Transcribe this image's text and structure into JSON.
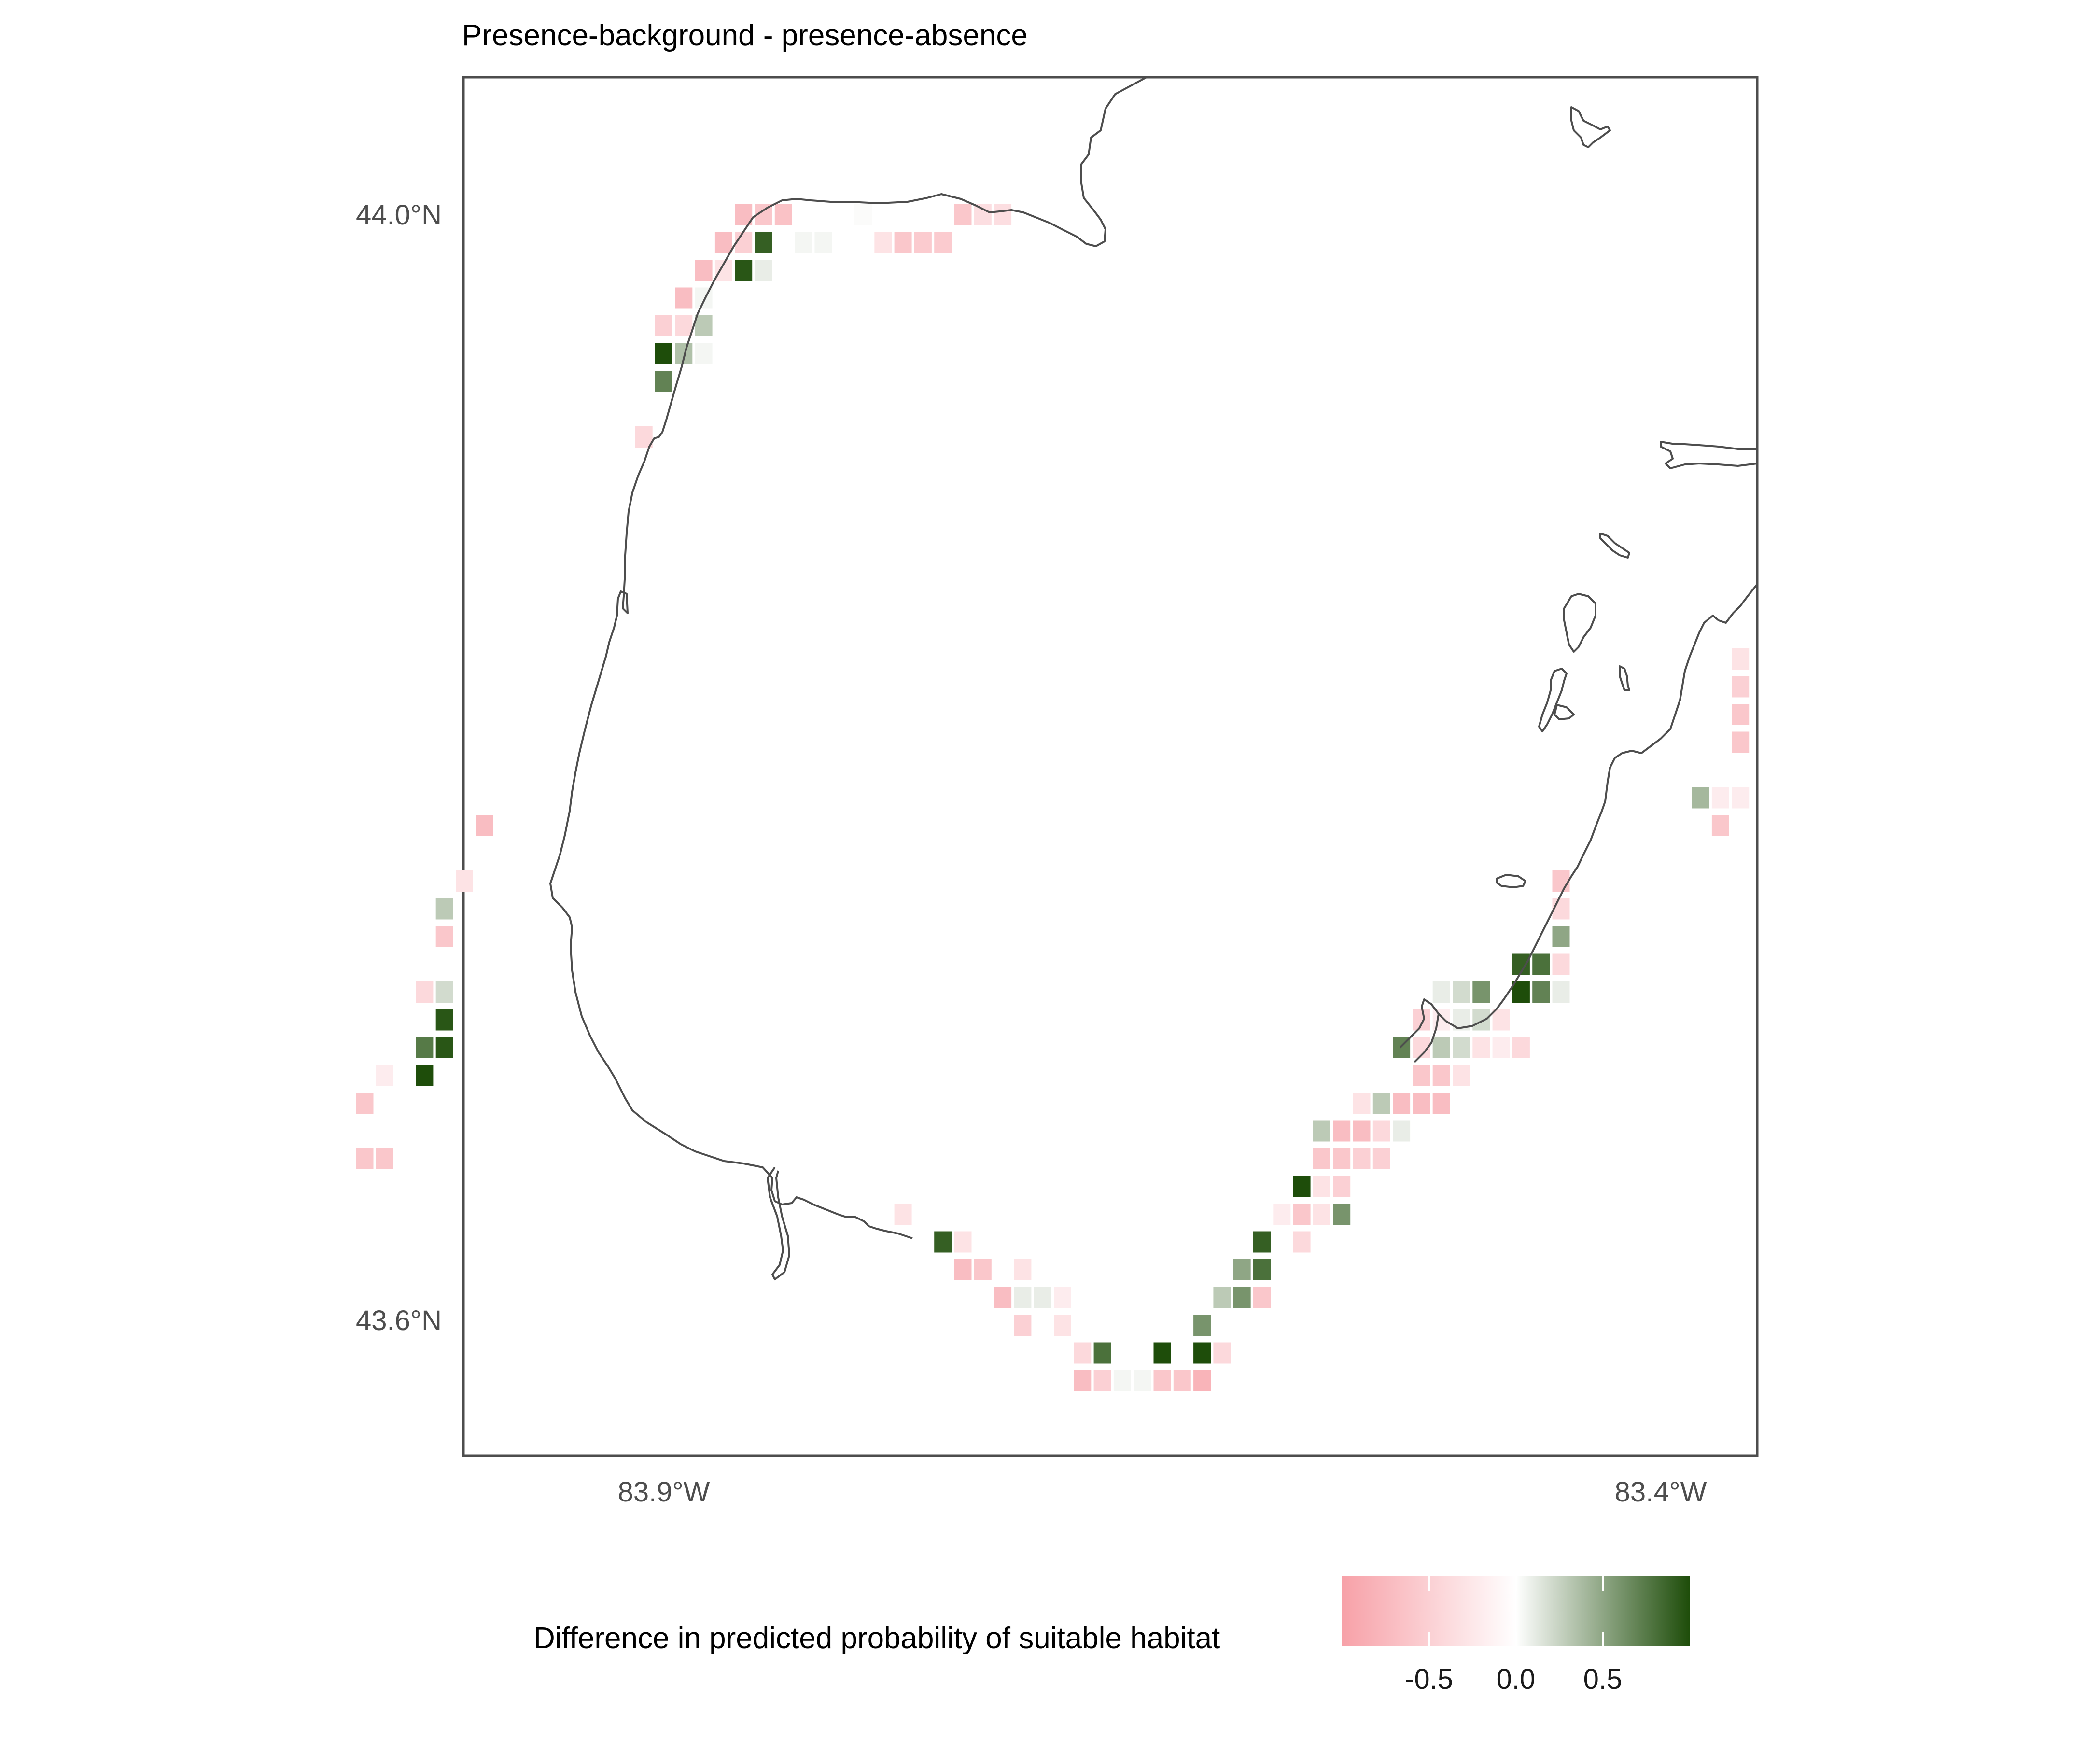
{
  "title": "Presence-background - presence-absence",
  "axes": {
    "lat_ticks": [
      "44.0°N",
      "43.6°N"
    ],
    "lon_ticks": [
      "83.9°W",
      "83.4°W"
    ]
  },
  "legend": {
    "title": "Difference in predicted probability of suitable habitat",
    "ticks": [
      "-0.5",
      "0.0",
      "0.5"
    ],
    "tick_values": [
      -0.5,
      0.0,
      0.5
    ],
    "range": [
      -1.0,
      1.0
    ],
    "colors": {
      "low": "#f7a1a8",
      "mid": "#ffffff",
      "high": "#1e4d0a"
    }
  },
  "map_data": {
    "type": "raster",
    "value_meaning": "difference",
    "cells_note": "",
    "cells": [
      {
        "lon": -83.86,
        "lat": 44.0,
        "v": -0.7
      },
      {
        "lon": -83.85,
        "lat": 44.0,
        "v": -0.6
      },
      {
        "lon": -83.84,
        "lat": 44.0,
        "v": -0.65
      },
      {
        "lon": -83.87,
        "lat": 43.99,
        "v": -0.7
      },
      {
        "lon": -83.86,
        "lat": 43.99,
        "v": -0.5
      },
      {
        "lon": -83.85,
        "lat": 43.99,
        "v": 0.9
      },
      {
        "lon": -83.84,
        "lat": 43.99,
        "v": 0.0
      },
      {
        "lon": -83.83,
        "lat": 43.99,
        "v": 0.05
      },
      {
        "lon": -83.82,
        "lat": 43.99,
        "v": 0.05
      },
      {
        "lon": -83.88,
        "lat": 43.98,
        "v": -0.7
      },
      {
        "lon": -83.87,
        "lat": 43.98,
        "v": -0.3
      },
      {
        "lon": -83.86,
        "lat": 43.98,
        "v": 0.95
      },
      {
        "lon": -83.85,
        "lat": 43.98,
        "v": 0.1
      },
      {
        "lon": -83.89,
        "lat": 43.97,
        "v": -0.7
      },
      {
        "lon": -83.88,
        "lat": 43.97,
        "v": 0.05
      },
      {
        "lon": -83.9,
        "lat": 43.96,
        "v": -0.5
      },
      {
        "lon": -83.89,
        "lat": 43.96,
        "v": -0.4
      },
      {
        "lon": -83.88,
        "lat": 43.96,
        "v": 0.3
      },
      {
        "lon": -83.9,
        "lat": 43.95,
        "v": 1.0
      },
      {
        "lon": -83.89,
        "lat": 43.95,
        "v": 0.35
      },
      {
        "lon": -83.88,
        "lat": 43.95,
        "v": 0.05
      },
      {
        "lon": -83.9,
        "lat": 43.94,
        "v": 0.7
      },
      {
        "lon": -83.91,
        "lat": 43.92,
        "v": -0.4
      },
      {
        "lon": -83.81,
        "lat": 44.0,
        "v": 0.0
      },
      {
        "lon": -83.8,
        "lat": 44.0,
        "v": 0.02
      },
      {
        "lon": -83.79,
        "lat": 43.99,
        "v": -0.3
      },
      {
        "lon": -83.78,
        "lat": 43.99,
        "v": -0.6
      },
      {
        "lon": -83.77,
        "lat": 43.99,
        "v": -0.55
      },
      {
        "lon": -83.76,
        "lat": 43.99,
        "v": -0.55
      },
      {
        "lon": -83.75,
        "lat": 44.0,
        "v": -0.6
      },
      {
        "lon": -83.74,
        "lat": 44.0,
        "v": -0.35
      },
      {
        "lon": -83.73,
        "lat": 44.0,
        "v": -0.35
      },
      {
        "lon": -83.99,
        "lat": 43.78,
        "v": -0.7
      },
      {
        "lon": -84.0,
        "lat": 43.76,
        "v": -0.3
      },
      {
        "lon": -84.01,
        "lat": 43.75,
        "v": 0.3
      },
      {
        "lon": -84.01,
        "lat": 43.74,
        "v": -0.6
      },
      {
        "lon": -84.02,
        "lat": 43.72,
        "v": -0.4
      },
      {
        "lon": -84.01,
        "lat": 43.72,
        "v": 0.2
      },
      {
        "lon": -84.01,
        "lat": 43.71,
        "v": 0.95
      },
      {
        "lon": -84.02,
        "lat": 43.7,
        "v": 0.75
      },
      {
        "lon": -84.01,
        "lat": 43.7,
        "v": 0.95
      },
      {
        "lon": -84.02,
        "lat": 43.69,
        "v": 1.0
      },
      {
        "lon": -84.04,
        "lat": 43.69,
        "v": -0.2
      },
      {
        "lon": -84.05,
        "lat": 43.68,
        "v": -0.6
      },
      {
        "lon": -84.05,
        "lat": 43.66,
        "v": -0.6
      },
      {
        "lon": -84.04,
        "lat": 43.66,
        "v": -0.6
      },
      {
        "lon": -83.78,
        "lat": 43.64,
        "v": -0.3
      },
      {
        "lon": -83.76,
        "lat": 43.63,
        "v": 0.9
      },
      {
        "lon": -83.75,
        "lat": 43.63,
        "v": -0.3
      },
      {
        "lon": -83.75,
        "lat": 43.62,
        "v": -0.7
      },
      {
        "lon": -83.74,
        "lat": 43.62,
        "v": -0.6
      },
      {
        "lon": -83.72,
        "lat": 43.62,
        "v": -0.3
      },
      {
        "lon": -83.73,
        "lat": 43.61,
        "v": -0.7
      },
      {
        "lon": -83.72,
        "lat": 43.61,
        "v": 0.1
      },
      {
        "lon": -83.71,
        "lat": 43.61,
        "v": 0.1
      },
      {
        "lon": -83.7,
        "lat": 43.61,
        "v": -0.2
      },
      {
        "lon": -83.72,
        "lat": 43.6,
        "v": -0.5
      },
      {
        "lon": -83.7,
        "lat": 43.6,
        "v": -0.3
      },
      {
        "lon": -83.69,
        "lat": 43.59,
        "v": -0.4
      },
      {
        "lon": -83.68,
        "lat": 43.59,
        "v": 0.8
      },
      {
        "lon": -83.69,
        "lat": 43.58,
        "v": -0.7
      },
      {
        "lon": -83.68,
        "lat": 43.58,
        "v": -0.5
      },
      {
        "lon": -83.67,
        "lat": 43.58,
        "v": 0.05
      },
      {
        "lon": -83.66,
        "lat": 43.58,
        "v": 0.05
      },
      {
        "lon": -83.65,
        "lat": 43.58,
        "v": -0.6
      },
      {
        "lon": -83.64,
        "lat": 43.58,
        "v": -0.6
      },
      {
        "lon": -83.63,
        "lat": 43.58,
        "v": -0.8
      },
      {
        "lon": -83.65,
        "lat": 43.59,
        "v": 1.0
      },
      {
        "lon": -83.63,
        "lat": 43.59,
        "v": 1.0
      },
      {
        "lon": -83.62,
        "lat": 43.59,
        "v": -0.4
      },
      {
        "lon": -83.63,
        "lat": 43.6,
        "v": 0.6
      },
      {
        "lon": -83.62,
        "lat": 43.61,
        "v": 0.3
      },
      {
        "lon": -83.61,
        "lat": 43.61,
        "v": 0.6
      },
      {
        "lon": -83.6,
        "lat": 43.61,
        "v": -0.6
      },
      {
        "lon": -83.61,
        "lat": 43.62,
        "v": 0.5
      },
      {
        "lon": -83.6,
        "lat": 43.62,
        "v": 0.8
      },
      {
        "lon": -83.6,
        "lat": 43.63,
        "v": 0.9
      },
      {
        "lon": -83.58,
        "lat": 43.63,
        "v": -0.4
      },
      {
        "lon": -83.59,
        "lat": 43.64,
        "v": -0.2
      },
      {
        "lon": -83.58,
        "lat": 43.64,
        "v": -0.6
      },
      {
        "lon": -83.57,
        "lat": 43.64,
        "v": -0.3
      },
      {
        "lon": -83.56,
        "lat": 43.64,
        "v": 0.6
      },
      {
        "lon": -83.58,
        "lat": 43.65,
        "v": 1.0
      },
      {
        "lon": -83.57,
        "lat": 43.65,
        "v": -0.3
      },
      {
        "lon": -83.56,
        "lat": 43.65,
        "v": -0.5
      },
      {
        "lon": -83.57,
        "lat": 43.66,
        "v": -0.6
      },
      {
        "lon": -83.56,
        "lat": 43.66,
        "v": -0.6
      },
      {
        "lon": -83.55,
        "lat": 43.66,
        "v": -0.5
      },
      {
        "lon": -83.54,
        "lat": 43.66,
        "v": -0.5
      },
      {
        "lon": -83.57,
        "lat": 43.67,
        "v": 0.3
      },
      {
        "lon": -83.56,
        "lat": 43.67,
        "v": -0.7
      },
      {
        "lon": -83.55,
        "lat": 43.67,
        "v": -0.7
      },
      {
        "lon": -83.54,
        "lat": 43.67,
        "v": -0.4
      },
      {
        "lon": -83.53,
        "lat": 43.67,
        "v": 0.1
      },
      {
        "lon": -83.55,
        "lat": 43.68,
        "v": -0.3
      },
      {
        "lon": -83.54,
        "lat": 43.68,
        "v": 0.3
      },
      {
        "lon": -83.53,
        "lat": 43.68,
        "v": -0.7
      },
      {
        "lon": -83.52,
        "lat": 43.68,
        "v": -0.7
      },
      {
        "lon": -83.51,
        "lat": 43.68,
        "v": -0.7
      },
      {
        "lon": -83.52,
        "lat": 43.69,
        "v": -0.6
      },
      {
        "lon": -83.51,
        "lat": 43.69,
        "v": -0.6
      },
      {
        "lon": -83.5,
        "lat": 43.69,
        "v": -0.3
      },
      {
        "lon": -83.53,
        "lat": 43.7,
        "v": 0.7
      },
      {
        "lon": -83.52,
        "lat": 43.7,
        "v": -0.4
      },
      {
        "lon": -83.51,
        "lat": 43.7,
        "v": 0.3
      },
      {
        "lon": -83.5,
        "lat": 43.7,
        "v": 0.2
      },
      {
        "lon": -83.49,
        "lat": 43.7,
        "v": -0.3
      },
      {
        "lon": -83.48,
        "lat": 43.7,
        "v": -0.2
      },
      {
        "lon": -83.47,
        "lat": 43.7,
        "v": -0.4
      },
      {
        "lon": -83.52,
        "lat": 43.71,
        "v": -0.5
      },
      {
        "lon": -83.51,
        "lat": 43.71,
        "v": -0.2
      },
      {
        "lon": -83.5,
        "lat": 43.71,
        "v": 0.1
      },
      {
        "lon": -83.49,
        "lat": 43.71,
        "v": 0.2
      },
      {
        "lon": -83.48,
        "lat": 43.71,
        "v": -0.3
      },
      {
        "lon": -83.51,
        "lat": 43.72,
        "v": 0.1
      },
      {
        "lon": -83.5,
        "lat": 43.72,
        "v": 0.2
      },
      {
        "lon": -83.49,
        "lat": 43.72,
        "v": 0.6
      },
      {
        "lon": -83.47,
        "lat": 43.72,
        "v": 1.0
      },
      {
        "lon": -83.46,
        "lat": 43.72,
        "v": 0.7
      },
      {
        "lon": -83.45,
        "lat": 43.72,
        "v": 0.1
      },
      {
        "lon": -83.47,
        "lat": 43.73,
        "v": 0.9
      },
      {
        "lon": -83.46,
        "lat": 43.73,
        "v": 0.8
      },
      {
        "lon": -83.45,
        "lat": 43.73,
        "v": -0.4
      },
      {
        "lon": -83.45,
        "lat": 43.74,
        "v": 0.5
      },
      {
        "lon": -83.45,
        "lat": 43.75,
        "v": -0.4
      },
      {
        "lon": -83.45,
        "lat": 43.76,
        "v": -0.6
      },
      {
        "lon": -83.37,
        "lat": 43.79,
        "v": -0.2
      },
      {
        "lon": -83.36,
        "lat": 43.79,
        "v": -0.2
      },
      {
        "lon": -83.38,
        "lat": 43.79,
        "v": 0.4
      },
      {
        "lon": -83.37,
        "lat": 43.78,
        "v": -0.6
      },
      {
        "lon": -83.36,
        "lat": 43.81,
        "v": -0.6
      },
      {
        "lon": -83.36,
        "lat": 43.82,
        "v": -0.6
      },
      {
        "lon": -83.36,
        "lat": 43.83,
        "v": -0.5
      },
      {
        "lon": -83.36,
        "lat": 43.84,
        "v": -0.3
      }
    ]
  }
}
